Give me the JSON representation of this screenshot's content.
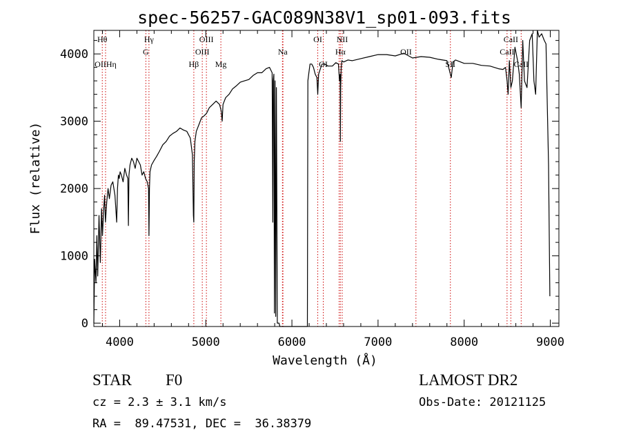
{
  "chart_data": {
    "type": "line",
    "title": "spec-56257-GAC089N38V1_sp01-093.fits",
    "xlabel": "Wavelength (Å)",
    "ylabel": "Flux (relative)",
    "xlim": [
      3700,
      9100
    ],
    "ylim": [
      -50,
      4350
    ],
    "x_ticks": [
      4000,
      5000,
      6000,
      7000,
      8000,
      9000
    ],
    "y_ticks": [
      0,
      1000,
      2000,
      3000,
      4000
    ],
    "grid": false,
    "line_color": "#000000",
    "line_mark_color": "#cc0000",
    "series": [
      {
        "x": [
          3700,
          3710,
          3725,
          3735,
          3745,
          3760,
          3775,
          3790,
          3800,
          3812,
          3825,
          3835,
          3850,
          3865,
          3880,
          3900,
          3920,
          3945,
          3965,
          3975,
          3985,
          3995,
          4005,
          4020,
          4040,
          4060,
          4080,
          4095,
          4101,
          4108,
          4120,
          4140,
          4160,
          4180,
          4200,
          4220,
          4240,
          4260,
          4280,
          4300,
          4320,
          4335,
          4340,
          4346,
          4352,
          4370,
          4400,
          4430,
          4460,
          4500,
          4540,
          4580,
          4620,
          4660,
          4700,
          4740,
          4780,
          4820,
          4845,
          4856,
          4861,
          4866,
          4874,
          4890,
          4920,
          4950,
          4980,
          5010,
          5040,
          5080,
          5120,
          5160,
          5180,
          5190,
          5200,
          5230,
          5270,
          5310,
          5350,
          5400,
          5450,
          5500,
          5550,
          5600,
          5650,
          5700,
          5740,
          5770,
          5778,
          5782,
          5790,
          5797,
          5804,
          5812,
          5820,
          5830,
          5840,
          5850,
          5860,
          5880,
          5889,
          5896,
          5905,
          6000,
          6100,
          6180,
          6185,
          6195,
          6210,
          6230,
          6250,
          6270,
          6290,
          6300,
          6310,
          6330,
          6350,
          6380,
          6420,
          6470,
          6510,
          6540,
          6552,
          6560,
          6563,
          6566,
          6572,
          6580,
          6600,
          6650,
          6700,
          6800,
          6900,
          7000,
          7100,
          7200,
          7300,
          7400,
          7500,
          7600,
          7700,
          7800,
          7850,
          7870,
          7900,
          8000,
          8100,
          8200,
          8300,
          8400,
          8450,
          8480,
          8498,
          8510,
          8525,
          8542,
          8560,
          8590,
          8620,
          8640,
          8662,
          8680,
          8700,
          8730,
          8760,
          8790,
          8810,
          8830,
          8850,
          8870,
          8900,
          8930,
          8950,
          8980,
          8995
        ],
        "y": [
          0,
          950,
          600,
          1300,
          700,
          1600,
          900,
          1700,
          1300,
          1650,
          1900,
          1500,
          1800,
          2000,
          1850,
          2050,
          2100,
          1900,
          1500,
          2000,
          2200,
          2150,
          2250,
          2200,
          2100,
          2300,
          2200,
          2150,
          1450,
          2200,
          2350,
          2450,
          2400,
          2300,
          2450,
          2400,
          2350,
          2200,
          2250,
          2150,
          2100,
          2000,
          1300,
          2000,
          2250,
          2350,
          2420,
          2480,
          2550,
          2650,
          2700,
          2780,
          2820,
          2850,
          2900,
          2870,
          2850,
          2750,
          2500,
          1600,
          1500,
          2400,
          2700,
          2850,
          2950,
          3050,
          3080,
          3120,
          3200,
          3250,
          3300,
          3250,
          3150,
          3000,
          3250,
          3350,
          3400,
          3480,
          3520,
          3580,
          3600,
          3620,
          3680,
          3720,
          3720,
          3780,
          3800,
          3720,
          1500,
          3600,
          3700,
          150,
          3600,
          100,
          3500,
          0,
          0,
          0,
          -50,
          -50,
          -50,
          -50,
          -50,
          -50,
          -50,
          -50,
          3600,
          3700,
          3850,
          3850,
          3800,
          3700,
          3650,
          3400,
          3700,
          3780,
          3850,
          3850,
          3820,
          3820,
          3870,
          3850,
          3600,
          3700,
          2700,
          3500,
          3800,
          3900,
          3880,
          3910,
          3900,
          3930,
          3960,
          3990,
          3990,
          3970,
          4010,
          3940,
          3960,
          3950,
          3920,
          3900,
          3650,
          3880,
          3910,
          3860,
          3860,
          3830,
          3820,
          3780,
          3770,
          3800,
          3600,
          3400,
          3900,
          3500,
          3600,
          4100,
          3900,
          3700,
          3200,
          4200,
          3600,
          3500,
          4200,
          4300,
          3600,
          3400,
          4350,
          4250,
          4300,
          4200,
          4150,
          2350,
          400
        ]
      }
    ],
    "line_labels": [
      {
        "label": "Hθ",
        "wavelength": 3798,
        "row": 0
      },
      {
        "label": "OIIHη",
        "wavelength": 3836,
        "row": 2
      },
      {
        "label": "Hγ",
        "wavelength": 4340,
        "row": 0
      },
      {
        "label": "G",
        "wavelength": 4304,
        "row": 1
      },
      {
        "label": "OIII",
        "wavelength": 5007,
        "row": 0
      },
      {
        "label": "OIII",
        "wavelength": 4959,
        "row": 1
      },
      {
        "label": "Hβ",
        "wavelength": 4861,
        "row": 2
      },
      {
        "label": "Mg",
        "wavelength": 5175,
        "row": 2
      },
      {
        "label": "Na",
        "wavelength": 5893,
        "row": 1
      },
      {
        "label": "OI",
        "wavelength": 6300,
        "row": 0
      },
      {
        "label": "OI",
        "wavelength": 6364,
        "row": 2
      },
      {
        "label": "NII",
        "wavelength": 6584,
        "row": 0
      },
      {
        "label": "Hα",
        "wavelength": 6563,
        "row": 1
      },
      {
        "label": "OII",
        "wavelength": 7325,
        "row": 1
      },
      {
        "label": "SII",
        "wavelength": 7840,
        "row": 2
      },
      {
        "label": "CaII",
        "wavelength": 8542,
        "row": 0
      },
      {
        "label": "CaII",
        "wavelength": 8498,
        "row": 1
      },
      {
        "label": "CaII",
        "wavelength": 8662,
        "row": 2
      }
    ],
    "line_mark_wavelengths": [
      3798,
      3836,
      4304,
      4340,
      4861,
      4959,
      5007,
      5175,
      5890,
      5896,
      6300,
      6364,
      6548,
      6563,
      6584,
      7440,
      7840,
      8498,
      8542,
      8662
    ]
  },
  "footer": {
    "object_class": "STAR",
    "subclass": "F0",
    "redshift": "cz = 2.3 ± 3.1 km/s",
    "coords": "RA =  89.47531, DEC =  36.38379",
    "survey": "LAMOST DR2",
    "obs_date": "Obs-Date: 20121125"
  }
}
